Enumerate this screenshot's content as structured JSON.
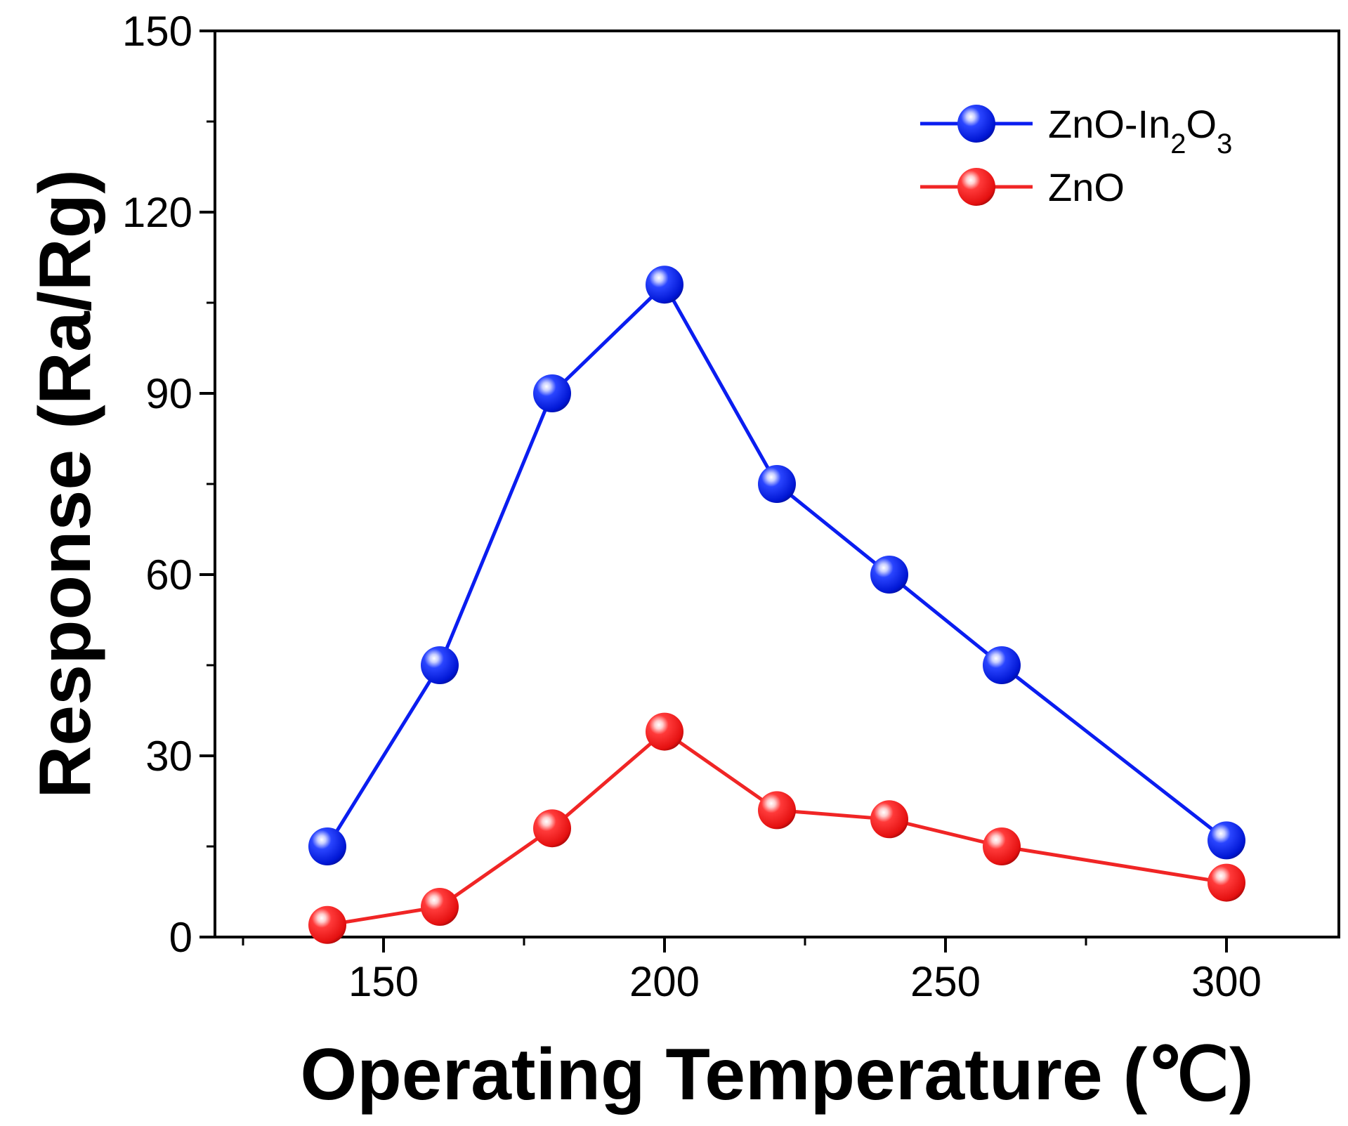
{
  "chart_data": {
    "type": "line",
    "title": "",
    "xlabel": "Operating Temperature (℃)",
    "ylabel": "Response (Ra/Rg)",
    "xlim": [
      120,
      320
    ],
    "ylim": [
      0,
      150
    ],
    "xticks": [
      150,
      200,
      250,
      300
    ],
    "xminor": [
      125,
      175,
      225,
      275
    ],
    "yticks": [
      0,
      30,
      60,
      90,
      120,
      150
    ],
    "yminor": [
      15,
      45,
      75,
      105,
      135
    ],
    "grid": false,
    "legend_position": "top-right",
    "x": [
      140,
      160,
      180,
      200,
      220,
      240,
      260,
      300
    ],
    "series": [
      {
        "name": "ZnO-In2O3",
        "legend_parts": [
          "ZnO-In",
          "2",
          "O",
          "3"
        ],
        "color": "#0a1df0",
        "values": [
          15,
          45,
          90,
          108,
          75,
          60,
          45,
          16
        ]
      },
      {
        "name": "ZnO",
        "legend_parts": [
          "ZnO"
        ],
        "color": "#f02525",
        "values": [
          2,
          5,
          18,
          34,
          21,
          19.5,
          15,
          9
        ]
      }
    ]
  }
}
